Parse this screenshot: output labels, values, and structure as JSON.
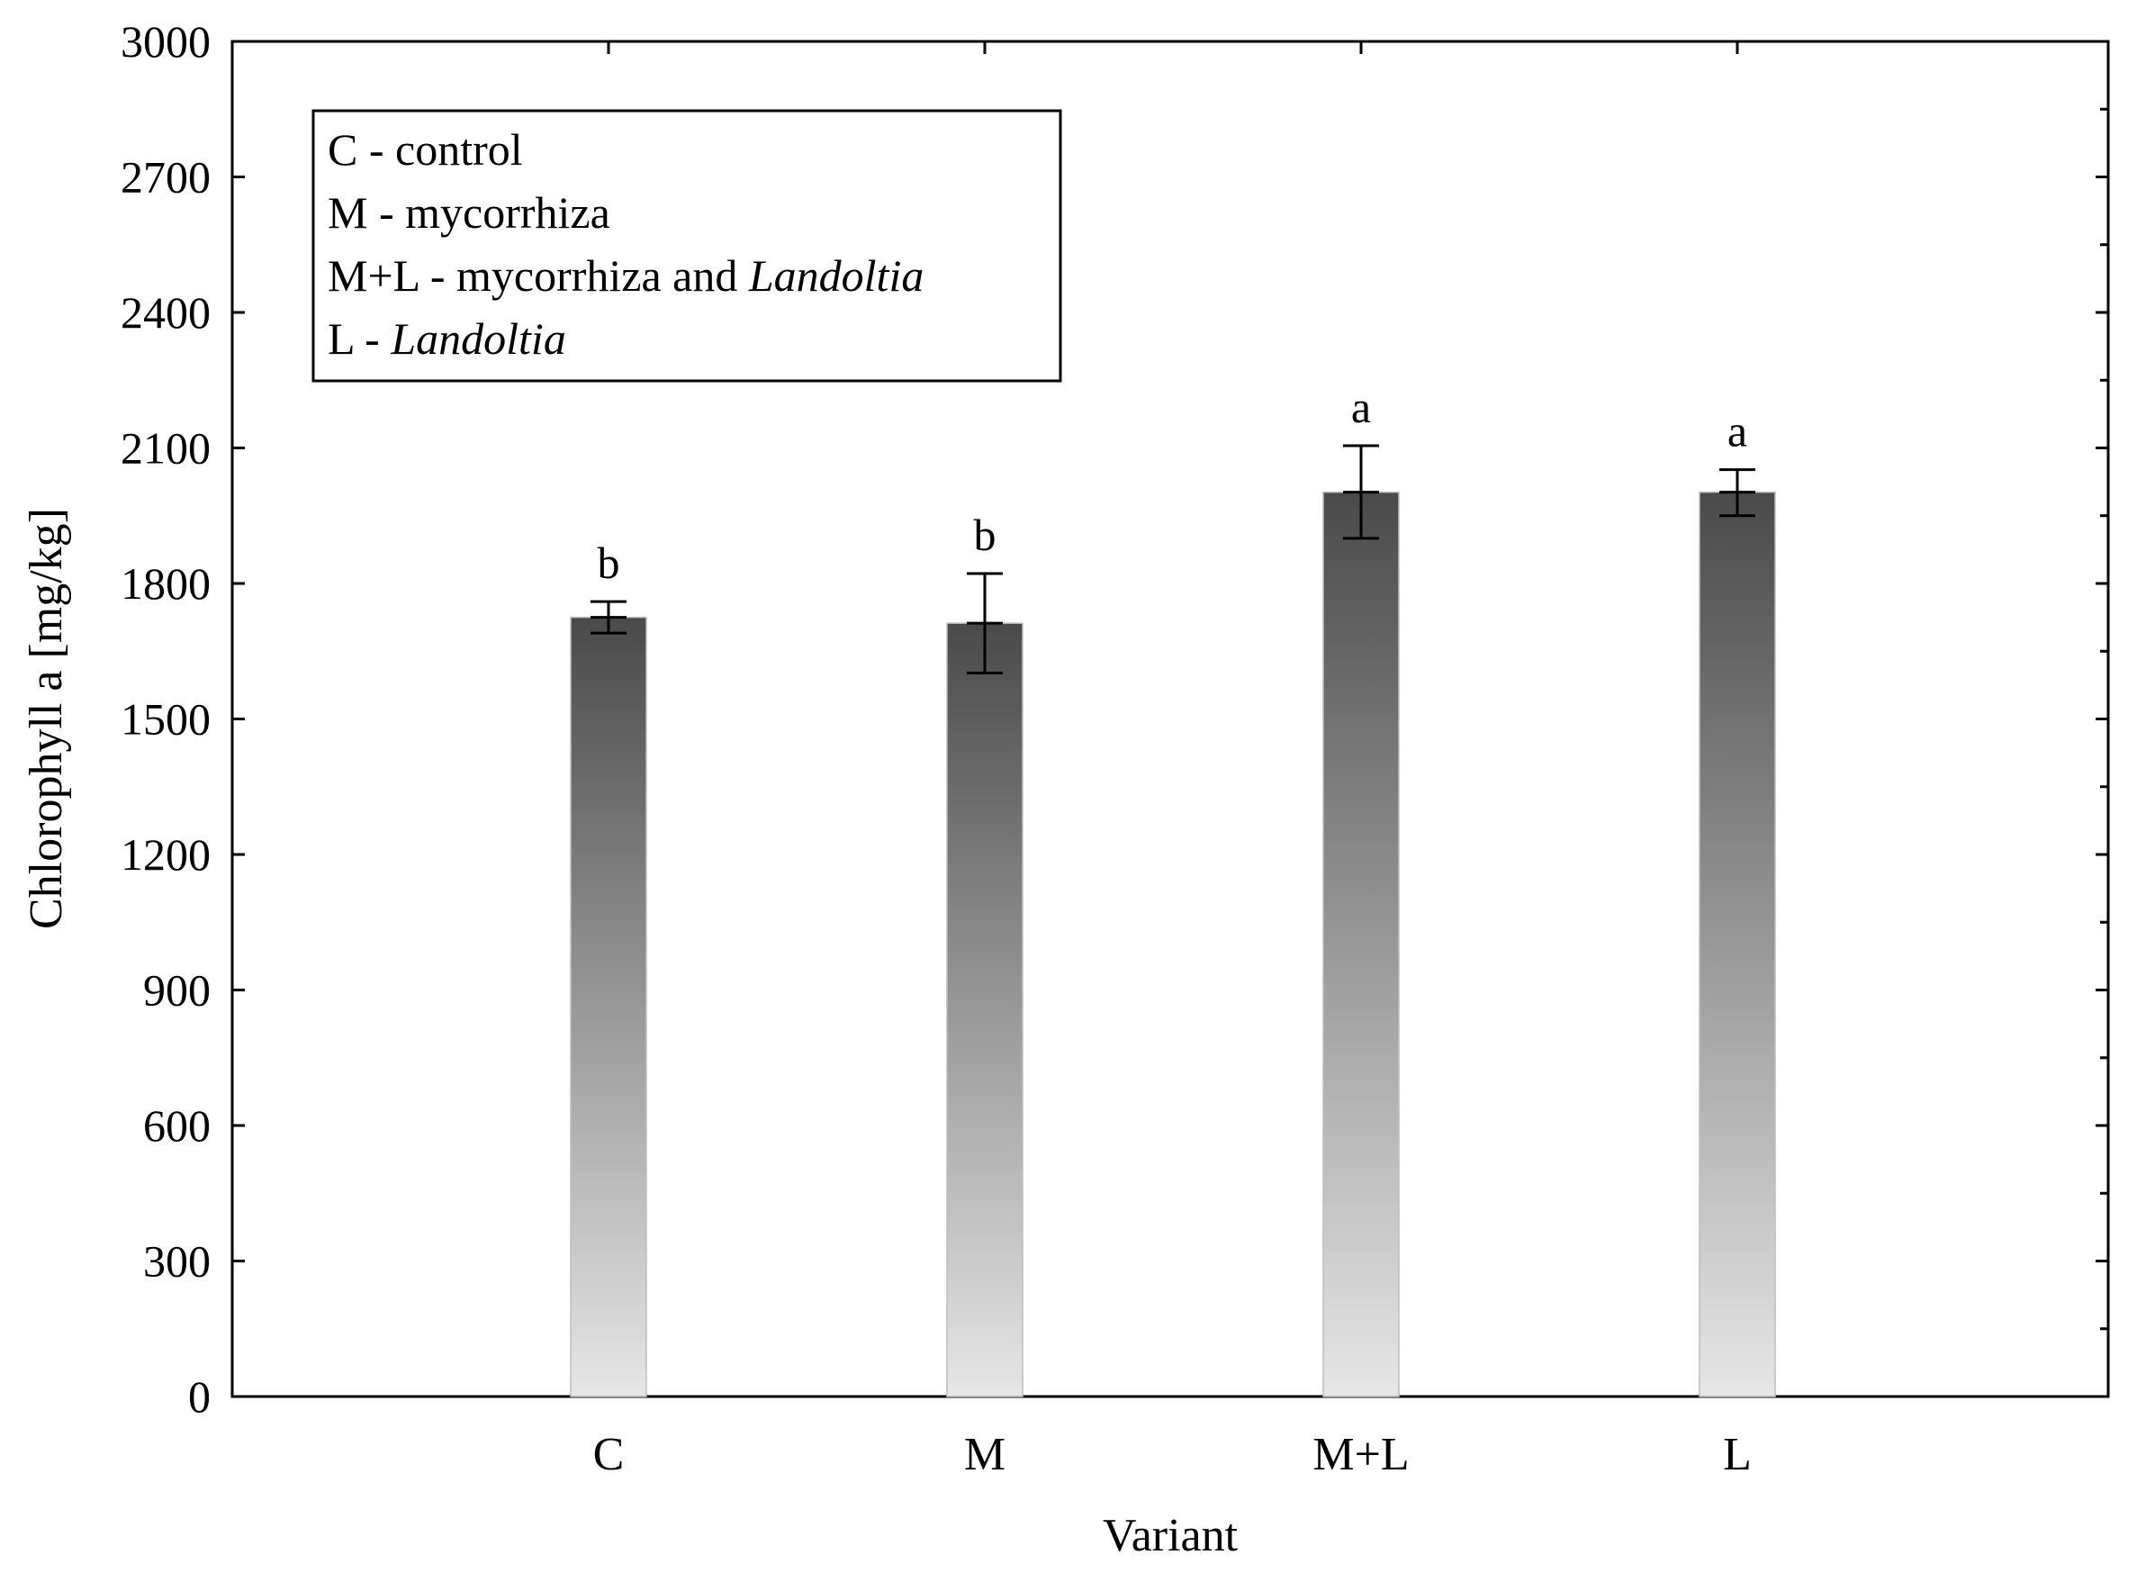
{
  "chart_data": {
    "type": "bar",
    "ylabel": "Chlorophyll a [mg/kg]",
    "xlabel": "Variant",
    "ylim": [
      0,
      3000
    ],
    "yticks": [
      0,
      300,
      600,
      900,
      1200,
      1500,
      1800,
      2100,
      2400,
      2700,
      3000
    ],
    "categories": [
      "C",
      "M",
      "M+L",
      "L"
    ],
    "values": [
      1725,
      1712,
      2002,
      2002
    ],
    "error_upper": [
      1760,
      1822,
      2105,
      2052
    ],
    "error_lower": [
      1690,
      1602,
      1900,
      1950
    ],
    "significance": [
      "b",
      "b",
      "a",
      "a"
    ],
    "bar_gradient": {
      "top": "#4a4a4a",
      "bottom": "#e6e6e6"
    },
    "legend": {
      "placement": "top-left",
      "entries": [
        {
          "plain": "C - control",
          "italic": ""
        },
        {
          "plain": "M - mycorrhiza",
          "italic": ""
        },
        {
          "plain": "M+L - mycorrhiza and ",
          "italic": "Landoltia"
        },
        {
          "plain": "L - ",
          "italic": "Landoltia"
        }
      ]
    }
  }
}
